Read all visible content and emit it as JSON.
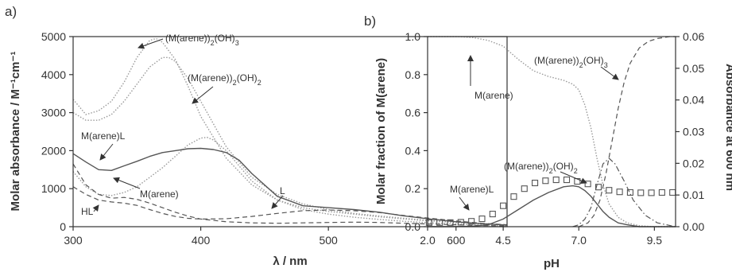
{
  "chart_data": [
    {
      "type": "line",
      "panel_label": "a)",
      "xlabel": "λ / nm",
      "ylabel": "Molar absorbance / M⁻¹cm⁻¹",
      "xlim": [
        300,
        640
      ],
      "ylim": [
        0,
        5000
      ],
      "xticks": [
        300,
        400,
        500,
        600
      ],
      "yticks": [
        0,
        1000,
        2000,
        3000,
        4000,
        5000
      ],
      "series": [
        {
          "name": "(M(arene))2(OH)3",
          "style": "dotted",
          "x": [
            300,
            310,
            320,
            330,
            340,
            350,
            360,
            365,
            370,
            380,
            390,
            400,
            420,
            440,
            460,
            480,
            500,
            520,
            540,
            560,
            580,
            600,
            620,
            640
          ],
          "y": [
            3350,
            2950,
            3050,
            3300,
            3800,
            4450,
            4900,
            4950,
            4850,
            4400,
            3700,
            2900,
            1800,
            1100,
            700,
            500,
            400,
            330,
            260,
            200,
            150,
            110,
            70,
            50
          ]
        },
        {
          "name": "(M(arene))2(OH)2",
          "style": "dotted",
          "x": [
            300,
            310,
            320,
            330,
            340,
            350,
            360,
            370,
            375,
            380,
            390,
            400,
            420,
            440,
            460,
            480,
            500,
            520,
            540,
            560,
            580,
            600,
            620,
            640
          ],
          "y": [
            3000,
            2800,
            2800,
            2950,
            3300,
            3750,
            4200,
            4450,
            4450,
            4350,
            3900,
            3300,
            2100,
            1300,
            850,
            600,
            450,
            350,
            280,
            220,
            160,
            120,
            80,
            50
          ]
        },
        {
          "name": "M(arene)",
          "style": "dotted",
          "x": [
            300,
            310,
            320,
            330,
            340,
            350,
            360,
            370,
            380,
            390,
            400,
            405,
            410,
            420,
            430,
            440,
            460,
            480,
            500,
            520,
            540,
            560,
            580,
            600,
            620,
            640
          ],
          "y": [
            1450,
            1050,
            850,
            820,
            900,
            1050,
            1300,
            1550,
            1850,
            2150,
            2330,
            2350,
            2280,
            2000,
            1600,
            1200,
            700,
            450,
            330,
            250,
            190,
            140,
            100,
            70,
            40,
            20
          ]
        },
        {
          "name": "M(arene)L",
          "style": "solid",
          "x": [
            300,
            310,
            320,
            330,
            340,
            350,
            360,
            370,
            380,
            390,
            400,
            410,
            420,
            430,
            440,
            460,
            480,
            500,
            520,
            540,
            560,
            580,
            600,
            620,
            640
          ],
          "y": [
            1920,
            1700,
            1500,
            1480,
            1600,
            1720,
            1850,
            1950,
            2000,
            2050,
            2060,
            2030,
            1950,
            1750,
            1400,
            800,
            550,
            500,
            450,
            380,
            280,
            200,
            130,
            80,
            40
          ]
        },
        {
          "name": "HL",
          "style": "dashed",
          "x": [
            300,
            310,
            320,
            330,
            340,
            350,
            360,
            370,
            380,
            390,
            400,
            420,
            440,
            460,
            480,
            500,
            520,
            540,
            560,
            580,
            600,
            620,
            640
          ],
          "y": [
            1650,
            1100,
            850,
            750,
            770,
            720,
            620,
            500,
            380,
            280,
            200,
            130,
            100,
            90,
            100,
            110,
            120,
            110,
            90,
            70,
            50,
            30,
            20
          ]
        },
        {
          "name": "L",
          "style": "dashed",
          "x": [
            300,
            310,
            320,
            330,
            340,
            350,
            360,
            370,
            380,
            390,
            400,
            420,
            440,
            460,
            480,
            500,
            520,
            540,
            560,
            580,
            600,
            620,
            640
          ],
          "y": [
            1050,
            850,
            700,
            650,
            620,
            560,
            450,
            350,
            270,
            220,
            200,
            210,
            270,
            350,
            420,
            440,
            420,
            370,
            290,
            220,
            150,
            90,
            50
          ]
        }
      ],
      "annotations": [
        "(M(arene))2(OH)3",
        "(M(arene))2(OH)2",
        "M(arene)L",
        "M(arene)",
        "HL",
        "L"
      ]
    },
    {
      "type": "line",
      "panel_label": "b)",
      "xlabel": "pH",
      "ylabel": "Molar fraction of M(arene)",
      "y2label": "Absorbance at 600 nm",
      "xlim": [
        2.0,
        10.2
      ],
      "ylim": [
        0,
        1.0
      ],
      "y2lim": [
        0,
        0.06
      ],
      "xticks": [
        2.0,
        4.5,
        7.0,
        9.5
      ],
      "yticks": [
        0.0,
        0.2,
        0.4,
        0.6,
        0.8,
        1.0
      ],
      "y2ticks": [
        0.0,
        0.01,
        0.02,
        0.03,
        0.04,
        0.05,
        0.06
      ],
      "series": [
        {
          "name": "M(arene)",
          "style": "dotted",
          "x": [
            2.0,
            3.0,
            3.5,
            4.0,
            4.5,
            5.0,
            5.5,
            6.0,
            6.5,
            6.8,
            7.0,
            7.2,
            7.4,
            7.6,
            7.8,
            8.0,
            8.3,
            8.6,
            9.0,
            9.5,
            10.2
          ],
          "y": [
            1.0,
            1.0,
            0.995,
            0.98,
            0.95,
            0.88,
            0.82,
            0.79,
            0.77,
            0.75,
            0.72,
            0.64,
            0.52,
            0.36,
            0.22,
            0.12,
            0.05,
            0.02,
            0.005,
            0.0,
            0.0
          ]
        },
        {
          "name": "M(arene)L",
          "style": "solid",
          "x": [
            2.0,
            2.5,
            3.0,
            3.5,
            4.0,
            4.5,
            5.0,
            5.5,
            6.0,
            6.5,
            6.8,
            7.0,
            7.2,
            7.4,
            7.6,
            7.8,
            8.0,
            8.3,
            8.6,
            9.0,
            9.5,
            10.2
          ],
          "y": [
            0.0,
            0.0,
            0.001,
            0.003,
            0.01,
            0.04,
            0.09,
            0.14,
            0.18,
            0.21,
            0.215,
            0.21,
            0.19,
            0.16,
            0.12,
            0.08,
            0.05,
            0.02,
            0.01,
            0.0,
            0.0,
            0.0
          ]
        },
        {
          "name": "(M(arene))2(OH)2",
          "style": "dashdot",
          "x": [
            6.8,
            7.0,
            7.2,
            7.4,
            7.6,
            7.8,
            8.0,
            8.2,
            8.5,
            8.8,
            9.2,
            9.6,
            10.2
          ],
          "y": [
            0.0,
            0.01,
            0.04,
            0.1,
            0.22,
            0.33,
            0.36,
            0.33,
            0.24,
            0.14,
            0.06,
            0.02,
            0.0
          ]
        },
        {
          "name": "(M(arene))2(OH)3",
          "style": "dashed",
          "x": [
            7.0,
            7.3,
            7.5,
            7.7,
            7.9,
            8.1,
            8.3,
            8.5,
            8.7,
            9.0,
            9.3,
            9.6,
            10.0,
            10.2
          ],
          "y": [
            0.0,
            0.02,
            0.06,
            0.14,
            0.28,
            0.45,
            0.62,
            0.76,
            0.86,
            0.94,
            0.975,
            0.99,
            1.0,
            1.0
          ]
        },
        {
          "name": "Absorbance at 600 nm",
          "style": "markers",
          "axis": "right",
          "x": [
            2.05,
            2.4,
            2.75,
            3.1,
            3.45,
            3.8,
            4.15,
            4.5,
            4.85,
            5.2,
            5.55,
            5.9,
            6.25,
            6.6,
            6.95,
            7.3,
            7.65,
            8.0,
            8.35,
            8.7,
            9.05,
            9.4,
            9.75,
            10.1
          ],
          "y": [
            0.0013,
            0.0013,
            0.0013,
            0.0014,
            0.0017,
            0.0025,
            0.004,
            0.0066,
            0.0095,
            0.012,
            0.0138,
            0.0145,
            0.0148,
            0.0148,
            0.0143,
            0.0135,
            0.0125,
            0.0115,
            0.011,
            0.0108,
            0.0107,
            0.0107,
            0.0108,
            0.0108
          ]
        }
      ],
      "annotations": [
        "(M(arene))2(OH)3",
        "(M(arene))2(OH)2",
        "M(arene)",
        "M(arene)L"
      ]
    }
  ]
}
